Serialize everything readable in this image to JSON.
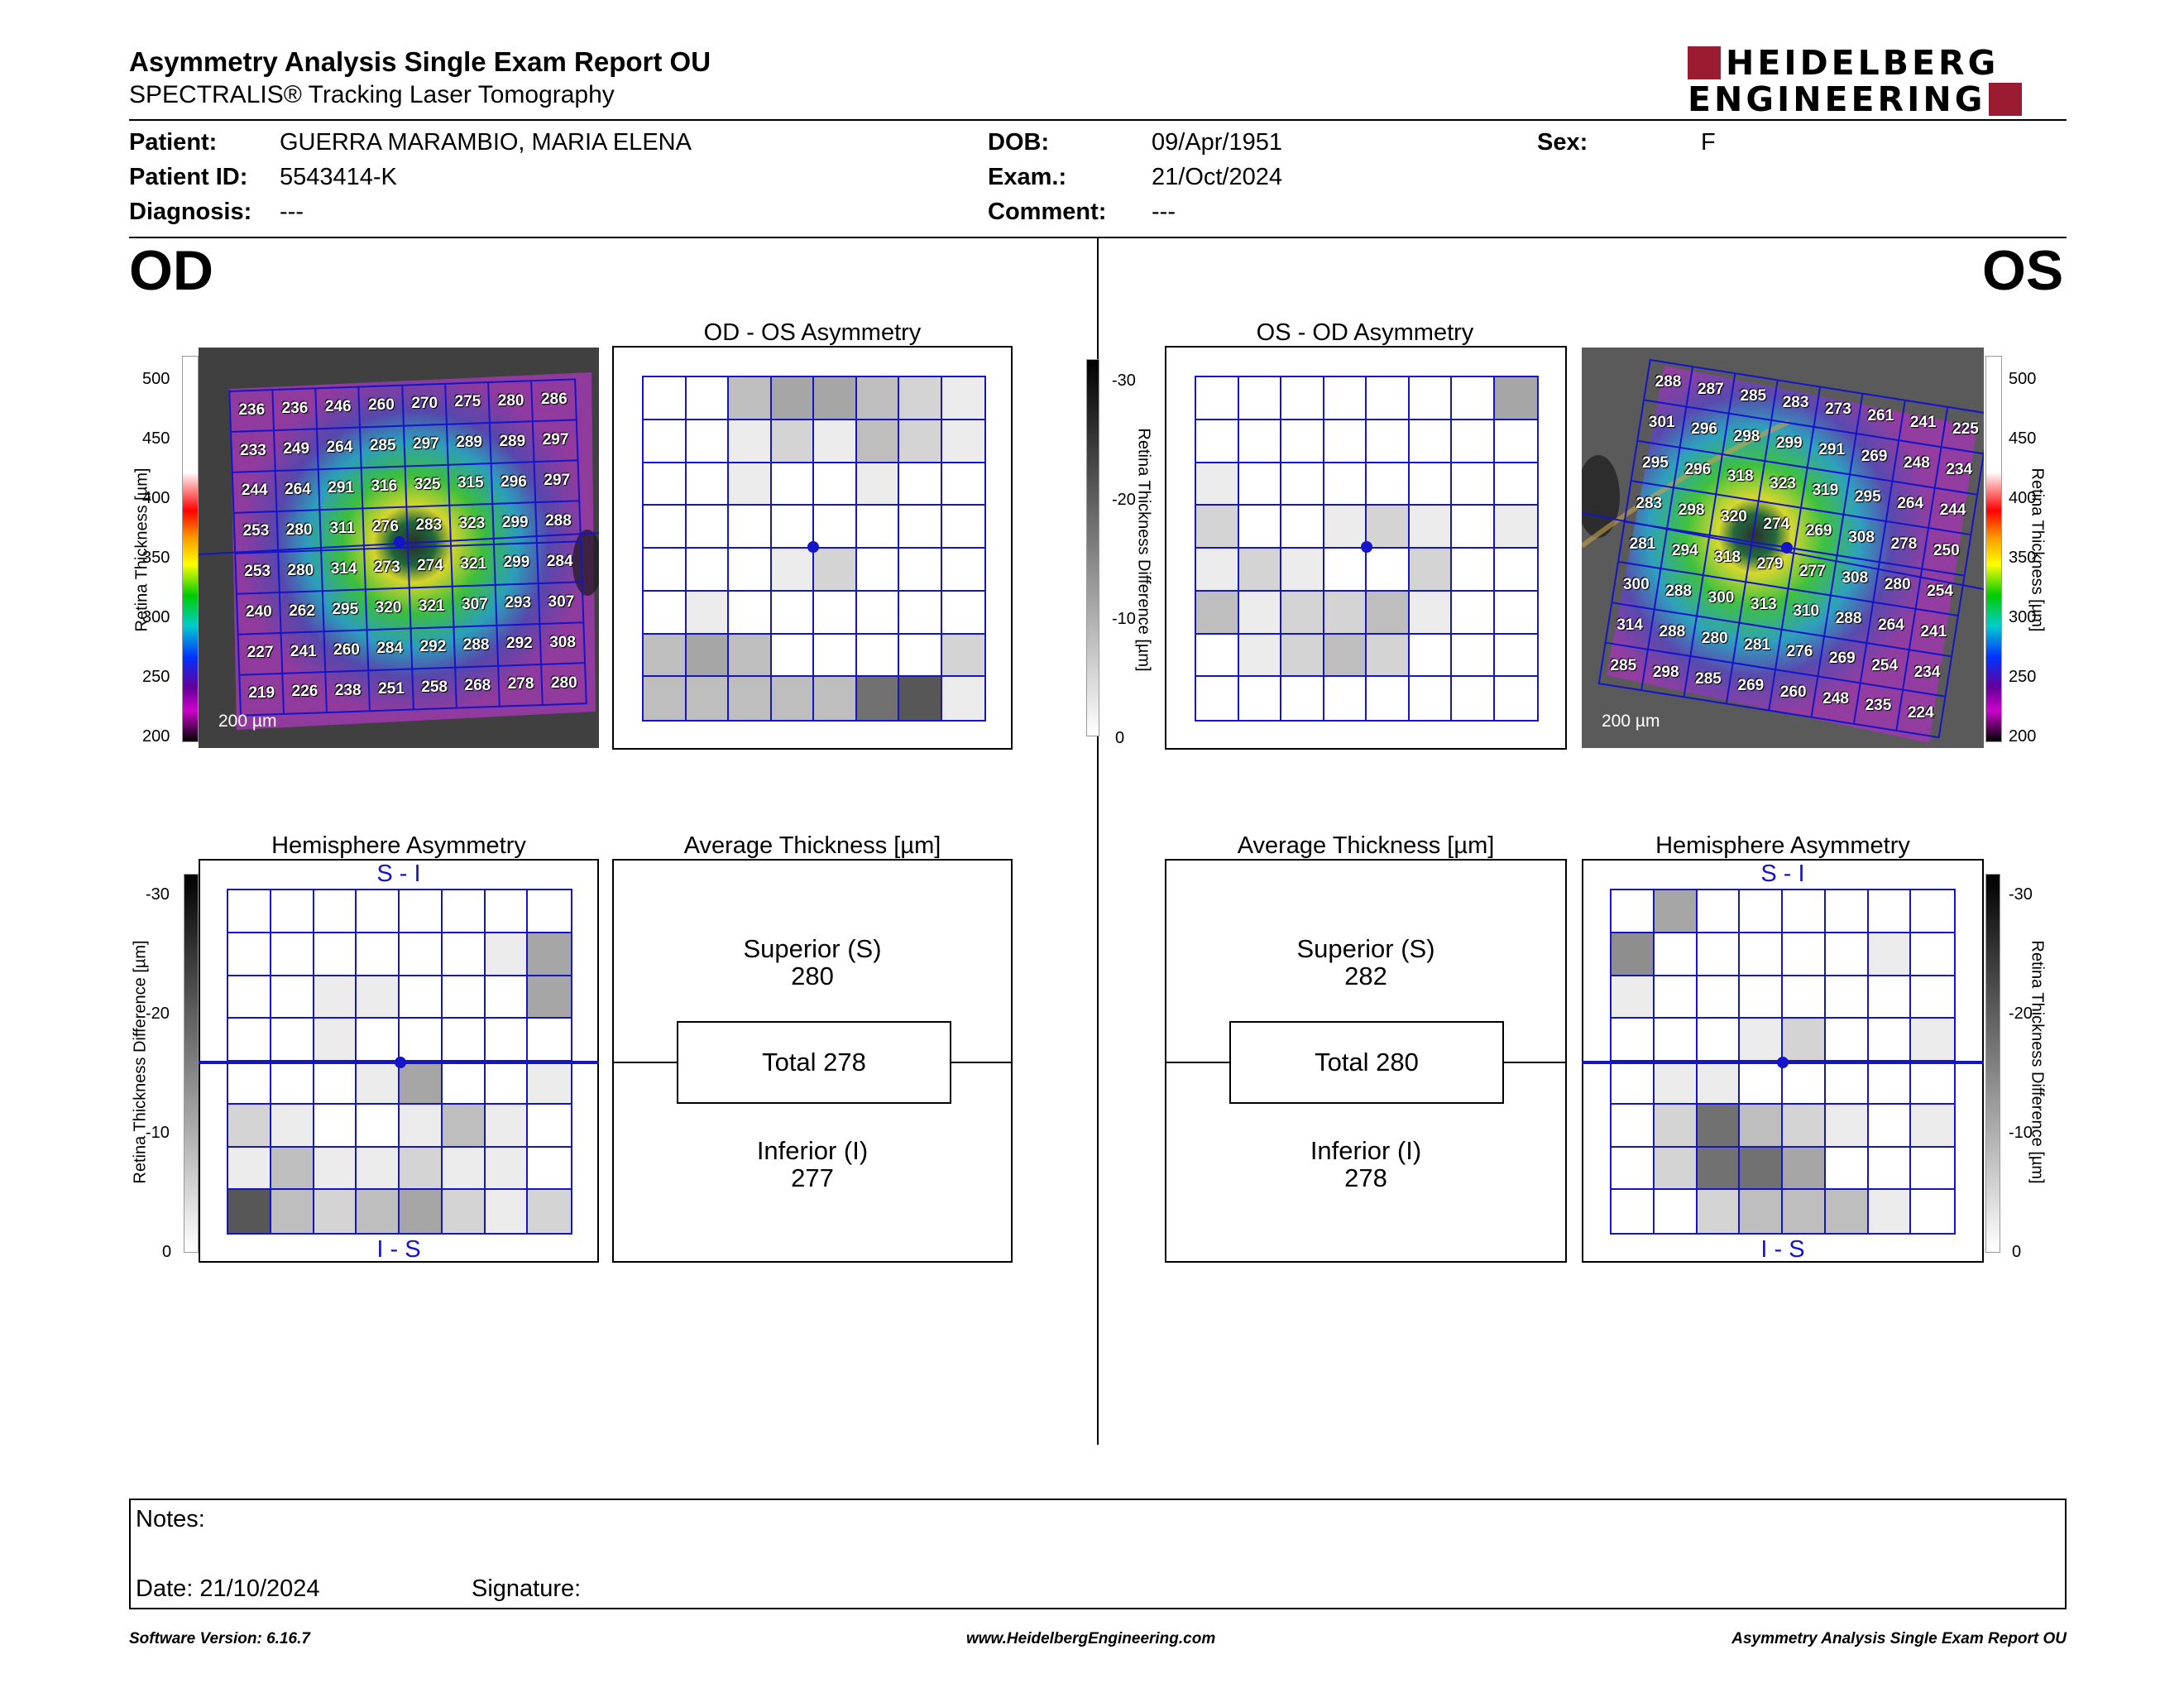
{
  "header": {
    "title": "Asymmetry Analysis Single Exam Report OU",
    "subtitle": "SPECTRALIS® Tracking Laser Tomography",
    "logo_line1": "HEIDELBERG",
    "logo_line2": "ENGINEERING",
    "colors": {
      "logo_red": "#9b1b30"
    }
  },
  "patient": {
    "patient_label": "Patient:",
    "patient_value": "GUERRA MARAMBIO, MARIA ELENA",
    "id_label": "Patient ID:",
    "id_value": "5543414-K",
    "diagnosis_label": "Diagnosis:",
    "diagnosis_value": "---",
    "dob_label": "DOB:",
    "dob_value": "09/Apr/1951",
    "exam_label": "Exam.:",
    "exam_value": "21/Oct/2024",
    "comment_label": "Comment:",
    "comment_value": "---",
    "sex_label": "Sex:",
    "sex_value": "F"
  },
  "od": {
    "eye_label": "OD",
    "asym_title": "OD - OS Asymmetry",
    "hemi_title": "Hemisphere Asymmetry",
    "hemi_top": "S - I",
    "hemi_bottom": "I - S",
    "avg_title": "Average Thickness [µm]",
    "superior_label": "Superior (S)",
    "superior_value": "280",
    "total_label": "Total 278",
    "inferior_label": "Inferior (I)",
    "inferior_value": "277",
    "scale_label": "200 µm",
    "thickness_grid": [
      [
        "236",
        "236",
        "246",
        "260",
        "270",
        "275",
        "280",
        "286"
      ],
      [
        "233",
        "249",
        "264",
        "285",
        "297",
        "289",
        "289",
        "297"
      ],
      [
        "244",
        "264",
        "291",
        "316",
        "325",
        "315",
        "296",
        "297"
      ],
      [
        "253",
        "280",
        "311",
        "276",
        "283",
        "323",
        "299",
        "288"
      ],
      [
        "253",
        "280",
        "314",
        "273",
        "274",
        "321",
        "299",
        "284"
      ],
      [
        "240",
        "262",
        "295",
        "320",
        "321",
        "307",
        "293",
        "307"
      ],
      [
        "227",
        "241",
        "260",
        "284",
        "292",
        "288",
        "292",
        "308"
      ],
      [
        "219",
        "226",
        "238",
        "251",
        "258",
        "268",
        "278",
        "280"
      ]
    ],
    "asym_shades": [
      [
        0,
        0,
        3,
        4,
        4,
        3,
        2,
        1
      ],
      [
        0,
        0,
        1,
        2,
        1,
        3,
        2,
        1
      ],
      [
        0,
        0,
        1,
        0,
        0,
        1,
        0,
        0
      ],
      [
        0,
        0,
        0,
        0,
        0,
        0,
        0,
        0
      ],
      [
        0,
        0,
        0,
        1,
        2,
        0,
        0,
        0
      ],
      [
        0,
        1,
        0,
        0,
        0,
        0,
        0,
        0
      ],
      [
        3,
        4,
        3,
        0,
        0,
        0,
        0,
        2
      ],
      [
        3,
        3,
        3,
        3,
        3,
        6,
        7,
        1
      ]
    ],
    "hemi_shades": [
      [
        0,
        0,
        0,
        0,
        0,
        0,
        0,
        0
      ],
      [
        0,
        0,
        0,
        0,
        0,
        0,
        1,
        4
      ],
      [
        0,
        0,
        1,
        1,
        0,
        0,
        0,
        4
      ],
      [
        0,
        0,
        1,
        0,
        0,
        0,
        0,
        0
      ],
      [
        0,
        0,
        0,
        1,
        4,
        0,
        0,
        1
      ],
      [
        2,
        1,
        0,
        0,
        1,
        3,
        1,
        0
      ],
      [
        1,
        3,
        1,
        1,
        2,
        1,
        1,
        0
      ],
      [
        7,
        3,
        2,
        3,
        4,
        2,
        1,
        2
      ]
    ]
  },
  "os": {
    "eye_label": "OS",
    "asym_title": "OS - OD Asymmetry",
    "hemi_title": "Hemisphere Asymmetry",
    "hemi_top": "S - I",
    "hemi_bottom": "I - S",
    "avg_title": "Average Thickness [µm]",
    "superior_label": "Superior (S)",
    "superior_value": "282",
    "total_label": "Total 280",
    "inferior_label": "Inferior (I)",
    "inferior_value": "278",
    "scale_label": "200 µm",
    "thickness_grid": [
      [
        "288",
        "287",
        "285",
        "283",
        "273",
        "261",
        "241",
        "225"
      ],
      [
        "301",
        "296",
        "298",
        "299",
        "291",
        "269",
        "248",
        "234"
      ],
      [
        "295",
        "296",
        "318",
        "323",
        "319",
        "295",
        "264",
        "244"
      ],
      [
        "283",
        "298",
        "320",
        "274",
        "269",
        "308",
        "278",
        "250"
      ],
      [
        "281",
        "294",
        "318",
        "279",
        "277",
        "308",
        "280",
        "254"
      ],
      [
        "300",
        "288",
        "300",
        "313",
        "310",
        "288",
        "264",
        "241"
      ],
      [
        "314",
        "288",
        "280",
        "281",
        "276",
        "269",
        "254",
        "234"
      ],
      [
        "285",
        "298",
        "285",
        "269",
        "260",
        "248",
        "235",
        "224"
      ]
    ],
    "asym_shades": [
      [
        0,
        0,
        0,
        0,
        0,
        0,
        0,
        4
      ],
      [
        0,
        0,
        0,
        0,
        0,
        0,
        0,
        0
      ],
      [
        1,
        0,
        0,
        0,
        0,
        0,
        0,
        0
      ],
      [
        2,
        0,
        0,
        1,
        2,
        1,
        0,
        1
      ],
      [
        1,
        2,
        1,
        0,
        0,
        2,
        0,
        0
      ],
      [
        3,
        1,
        2,
        2,
        3,
        1,
        0,
        0
      ],
      [
        0,
        1,
        2,
        3,
        2,
        0,
        0,
        0
      ],
      [
        0,
        0,
        0,
        0,
        0,
        0,
        0,
        0
      ]
    ],
    "hemi_shades": [
      [
        0,
        4,
        0,
        0,
        0,
        0,
        0,
        0
      ],
      [
        5,
        0,
        0,
        0,
        0,
        0,
        1,
        0
      ],
      [
        1,
        0,
        0,
        0,
        0,
        0,
        0,
        0
      ],
      [
        0,
        0,
        0,
        1,
        2,
        0,
        0,
        1
      ],
      [
        0,
        1,
        1,
        0,
        0,
        0,
        0,
        0
      ],
      [
        0,
        2,
        6,
        3,
        2,
        1,
        0,
        1
      ],
      [
        0,
        2,
        6,
        6,
        4,
        0,
        0,
        0
      ],
      [
        0,
        0,
        2,
        3,
        3,
        3,
        1,
        0
      ]
    ]
  },
  "colorbars": {
    "thickness_ticks": [
      "500",
      "450",
      "400",
      "350",
      "300",
      "250",
      "200"
    ],
    "thickness_title": "Retina Thickness [µm]",
    "diff_ticks": [
      "-30",
      "-20",
      "-10",
      "0"
    ],
    "diff_title": "Retina Thickness Difference [µm]"
  },
  "notes": {
    "notes_label": "Notes:",
    "date_label": "Date: 21/10/2024",
    "signature_label": "Signature:"
  },
  "footer": {
    "software": "Software Version: 6.16.7",
    "website": "www.HeidelbergEngineering.com",
    "report_name": "Asymmetry Analysis Single Exam Report OU"
  },
  "colors": {
    "grid_blue": "#1414c8",
    "gray_scale": [
      "#ffffff",
      "#ececec",
      "#d4d4d4",
      "#bebebe",
      "#a6a6a6",
      "#8e8e8e",
      "#717171",
      "#575757"
    ]
  }
}
